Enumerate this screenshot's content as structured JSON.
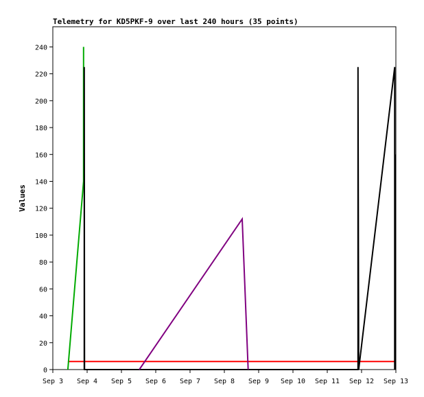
{
  "chart_data": {
    "type": "line",
    "title": "Telemetry for KD5PKF-9 over last 240 hours (35 points)",
    "xlabel": "",
    "ylabel": "Values",
    "x_tick_labels": [
      "Sep 3",
      "Sep 4",
      "Sep 5",
      "Sep 6",
      "Sep 7",
      "Sep 8",
      "Sep 9",
      "Sep 10",
      "Sep 11",
      "Sep 12",
      "Sep 13"
    ],
    "x_tick_dates": [
      "2023-09-03",
      "2023-09-04",
      "2023-09-05",
      "2023-09-06",
      "2023-09-07",
      "2023-09-08",
      "2023-09-09",
      "2023-09-10",
      "2023-09-11",
      "2023-09-12",
      "2023-09-13"
    ],
    "xlim": [
      "2023-09-03T00:00",
      "2023-09-13T00:00"
    ],
    "ylim": [
      0,
      255
    ],
    "y_ticks": [
      0,
      20,
      40,
      60,
      80,
      100,
      120,
      140,
      160,
      180,
      200,
      220,
      240
    ],
    "grid": false,
    "legend": "none",
    "series": [
      {
        "color": "#ff0000",
        "points": [
          [
            "2023-09-03T10:30",
            6
          ],
          [
            "2023-09-12T23:45",
            6
          ]
        ]
      },
      {
        "color": "#00aa00",
        "points": [
          [
            "2023-09-03T10:30",
            0
          ],
          [
            "2023-09-03T21:30",
            140
          ],
          [
            "2023-09-03T21:30",
            240
          ]
        ]
      },
      {
        "color": "#000000",
        "points": [
          [
            "2023-09-03T22:00",
            0
          ],
          [
            "2023-09-03T22:00",
            225
          ],
          [
            "2023-09-03T22:10",
            0
          ],
          [
            "2023-09-11T21:30",
            0
          ],
          [
            "2023-09-11T21:30",
            225
          ],
          [
            "2023-09-11T22:00",
            0
          ],
          [
            "2023-09-12T23:10",
            225
          ],
          [
            "2023-09-12T23:10",
            0
          ],
          [
            "2023-09-12T23:30",
            160
          ],
          [
            "2023-09-12T23:45",
            0
          ]
        ]
      },
      {
        "color": "#800080",
        "points": [
          [
            "2023-09-05T12:30",
            0
          ],
          [
            "2023-09-08T12:30",
            112
          ],
          [
            "2023-09-08T16:40",
            0
          ]
        ]
      }
    ]
  }
}
